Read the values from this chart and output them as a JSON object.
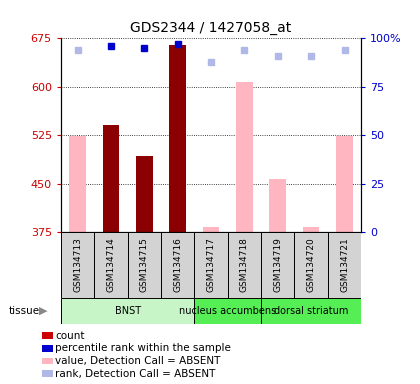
{
  "title": "GDS2344 / 1427058_at",
  "samples": [
    "GSM134713",
    "GSM134714",
    "GSM134715",
    "GSM134716",
    "GSM134717",
    "GSM134718",
    "GSM134719",
    "GSM134720",
    "GSM134721"
  ],
  "tissue_data": [
    {
      "label": "BNST",
      "start": 0,
      "end": 4,
      "color": "#c8f5c8"
    },
    {
      "label": "nucleus accumbens",
      "start": 4,
      "end": 6,
      "color": "#55ee55"
    },
    {
      "label": "dorsal striatum",
      "start": 6,
      "end": 9,
      "color": "#55ee55"
    }
  ],
  "ylim_left": [
    375,
    675
  ],
  "ylim_right": [
    0,
    100
  ],
  "yticks_left": [
    375,
    450,
    525,
    600,
    675
  ],
  "yticks_right": [
    0,
    25,
    50,
    75,
    100
  ],
  "value_bars": [
    {
      "x": 0,
      "value": 524,
      "absent": true
    },
    {
      "x": 1,
      "value": 541,
      "absent": false
    },
    {
      "x": 2,
      "value": 493,
      "absent": false
    },
    {
      "x": 3,
      "value": 665,
      "absent": false
    },
    {
      "x": 4,
      "value": 383,
      "absent": true
    },
    {
      "x": 5,
      "value": 608,
      "absent": true
    },
    {
      "x": 6,
      "value": 458,
      "absent": true
    },
    {
      "x": 7,
      "value": 383,
      "absent": true
    },
    {
      "x": 8,
      "value": 524,
      "absent": true
    }
  ],
  "rank_dots_present": [
    {
      "x": 1,
      "value": 96
    },
    {
      "x": 2,
      "value": 95
    },
    {
      "x": 3,
      "value": 97
    }
  ],
  "rank_dots_absent": [
    {
      "x": 0,
      "value": 94
    },
    {
      "x": 4,
      "value": 88
    },
    {
      "x": 5,
      "value": 94
    },
    {
      "x": 6,
      "value": 91
    },
    {
      "x": 7,
      "value": 91
    },
    {
      "x": 8,
      "value": 94
    }
  ],
  "color_count_present": "#8b0000",
  "color_count_absent": "#ffb6c1",
  "color_rank_present": "#0000cc",
  "color_rank_absent": "#b0b8e8",
  "bar_width": 0.5,
  "left_label_color": "#cc0000",
  "right_label_color": "#0000cc",
  "legend_items": [
    {
      "color": "#cc0000",
      "label": "count"
    },
    {
      "color": "#0000cc",
      "label": "percentile rank within the sample"
    },
    {
      "color": "#ffb6c1",
      "label": "value, Detection Call = ABSENT"
    },
    {
      "color": "#b0b8e8",
      "label": "rank, Detection Call = ABSENT"
    }
  ]
}
